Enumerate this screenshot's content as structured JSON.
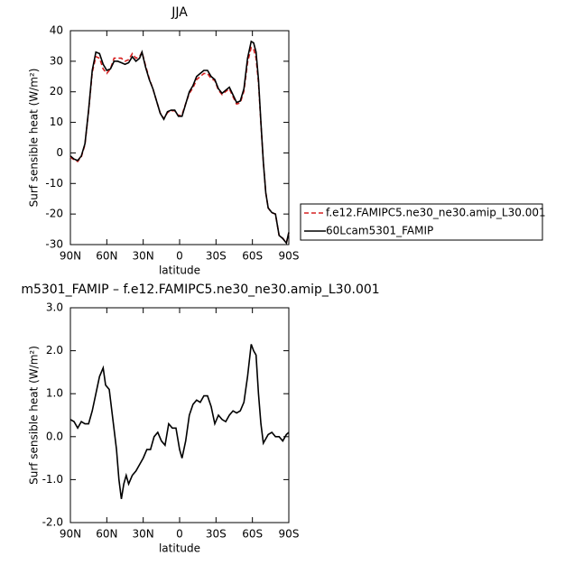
{
  "chart_data": [
    {
      "type": "line",
      "title": "JJA",
      "xlabel": "latitude",
      "ylabel": "Surf sensible heat (W/m²)",
      "legend": "right",
      "x": [
        90,
        87,
        84,
        81,
        78,
        75,
        72,
        69,
        66,
        63,
        60,
        57,
        54,
        51,
        48,
        45,
        42,
        39,
        36,
        33,
        31,
        28,
        25,
        22,
        19,
        16,
        13,
        10,
        7,
        4,
        1,
        -2,
        -5,
        -8,
        -11,
        -14,
        -17,
        -20,
        -23,
        -26,
        -29,
        -32,
        -35,
        -38,
        -41,
        -44,
        -47,
        -50,
        -53,
        -56,
        -59,
        -61,
        -63,
        -65,
        -67,
        -69,
        -71,
        -73,
        -76,
        -79,
        -82,
        -85,
        -88,
        -90
      ],
      "series": [
        {
          "name": "f.e12.FAMIPC5.ne30_ne30.amip_L30.001",
          "color": "#d62020",
          "linestyle": "dashed",
          "values": [
            -1.3,
            -2.3,
            -2.8,
            -1.3,
            2.7,
            13.7,
            26.3,
            31.5,
            31,
            27.5,
            26,
            27.5,
            31,
            31,
            31,
            30,
            30.5,
            32.5,
            31,
            31.5,
            33,
            28.5,
            24.3,
            21,
            17,
            13.1,
            11.2,
            13.2,
            13.8,
            13.8,
            12.2,
            12.5,
            16.1,
            19.5,
            21.3,
            24,
            25,
            26,
            26,
            24.3,
            23.7,
            20.5,
            19.1,
            20.1,
            21,
            18.4,
            16,
            16.4,
            20.2,
            29.6,
            34.5,
            34,
            31,
            23,
            9.7,
            -2.9,
            -13,
            -18,
            -19.6,
            -20,
            -27,
            -27.9,
            -29.5,
            -26.1
          ]
        },
        {
          "name": "60Lcam5301_FAMIP",
          "color": "#000000",
          "linestyle": "solid",
          "values": [
            -1,
            -2,
            -2.5,
            -1,
            3,
            14,
            27,
            33,
            32.5,
            29,
            27,
            27.5,
            30,
            30,
            29.5,
            29,
            29.5,
            31.5,
            30,
            31,
            33,
            28,
            24,
            21,
            17,
            13,
            11,
            13.5,
            14,
            14,
            12,
            12,
            16,
            20,
            22,
            25,
            26,
            27,
            27,
            25,
            24,
            21,
            19.5,
            20.5,
            21.5,
            19,
            16.5,
            17,
            21,
            31,
            36.5,
            36,
            33,
            24,
            10,
            -3,
            -13,
            -18,
            -19.5,
            -20,
            -27,
            -28,
            -29.5,
            -26
          ]
        }
      ],
      "xlim": [
        90,
        -90
      ],
      "xticks": [
        {
          "value": 90,
          "label": "90N"
        },
        {
          "value": 60,
          "label": "60N"
        },
        {
          "value": 30,
          "label": "30N"
        },
        0,
        {
          "value": -30,
          "label": "30S"
        },
        {
          "value": -60,
          "label": "60S"
        },
        {
          "value": -90,
          "label": "90S"
        }
      ],
      "ylim": [
        -30,
        40
      ],
      "yticks": [
        -30,
        -20,
        -10,
        0,
        10,
        20,
        30,
        40
      ]
    },
    {
      "type": "line",
      "title": "m5301_FAMIP – f.e12.FAMIPC5.ne30_ne30.amip_L30.001",
      "xlabel": "latitude",
      "ylabel": "Surf sensible heat (W/m²)",
      "x": [
        90,
        87,
        84,
        81,
        78,
        75,
        72,
        69,
        66,
        63,
        61,
        58,
        55,
        52,
        50,
        48,
        46,
        44,
        42,
        39,
        36,
        33,
        30,
        27,
        24,
        21,
        18,
        15,
        12,
        9,
        6,
        3,
        0,
        -2,
        -5,
        -8,
        -11,
        -14,
        -17,
        -20,
        -23,
        -26,
        -29,
        -32,
        -35,
        -38,
        -41,
        -44,
        -47,
        -50,
        -53,
        -56,
        -59,
        -61,
        -63,
        -65,
        -67,
        -69,
        -71,
        -73,
        -76,
        -79,
        -82,
        -85,
        -88,
        -90
      ],
      "series": [
        {
          "color": "#000000",
          "linestyle": "solid",
          "values": [
            0.4,
            0.35,
            0.2,
            0.35,
            0.3,
            0.3,
            0.6,
            1.0,
            1.4,
            1.6,
            1.2,
            1.1,
            0.4,
            -0.3,
            -1.0,
            -1.45,
            -1.1,
            -0.9,
            -1.1,
            -0.9,
            -0.8,
            -0.65,
            -0.5,
            -0.3,
            -0.3,
            0,
            0.1,
            -0.1,
            -0.2,
            0.3,
            0.2,
            0.2,
            -0.3,
            -0.5,
            -0.1,
            0.5,
            0.75,
            0.85,
            0.8,
            0.95,
            0.95,
            0.7,
            0.3,
            0.5,
            0.4,
            0.35,
            0.5,
            0.6,
            0.55,
            0.6,
            0.8,
            1.4,
            2.15,
            2.0,
            1.9,
            1.0,
            0.3,
            -0.15,
            -0.05,
            0.05,
            0.1,
            0,
            0,
            -0.1,
            0.05,
            0.1
          ]
        }
      ],
      "xlim": [
        90,
        -90
      ],
      "xticks": [
        {
          "value": 90,
          "label": "90N"
        },
        {
          "value": 60,
          "label": "60N"
        },
        {
          "value": 30,
          "label": "30N"
        },
        0,
        {
          "value": -30,
          "label": "30S"
        },
        {
          "value": -60,
          "label": "60S"
        },
        {
          "value": -90,
          "label": "90S"
        }
      ],
      "ylim": [
        -2,
        3
      ],
      "yticks": [
        {
          "value": -2,
          "label": "-2.0"
        },
        {
          "value": -1,
          "label": "-1.0"
        },
        {
          "value": 0,
          "label": "0.0"
        },
        {
          "value": 1,
          "label": "1.0"
        },
        {
          "value": 2,
          "label": "2.0"
        },
        {
          "value": 3,
          "label": "3.0"
        }
      ]
    }
  ]
}
